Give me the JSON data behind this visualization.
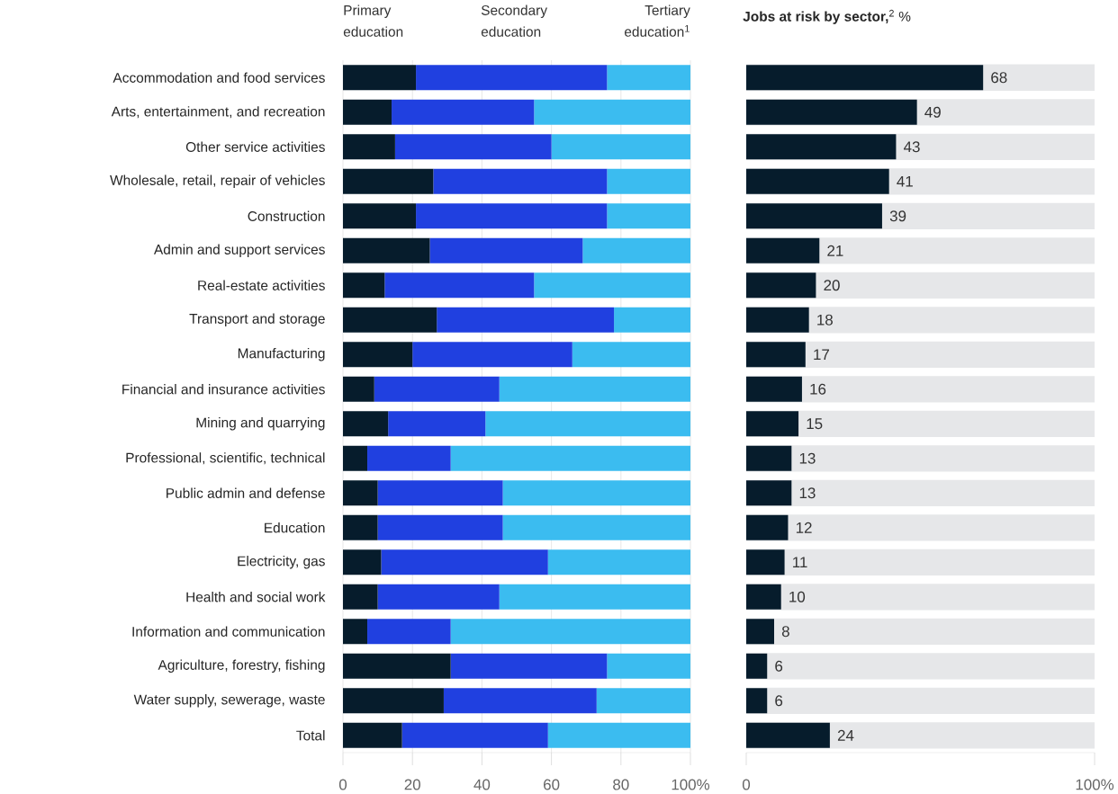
{
  "chart_data": [
    {
      "type": "bar",
      "orientation": "horizontal",
      "stacked": true,
      "legend": "top",
      "grid": "x",
      "categories": [
        "Accommodation and food services",
        "Arts, entertainment, and recreation",
        "Other service activities",
        "Wholesale, retail, repair of vehicles",
        "Construction",
        "Admin and support services",
        "Real-estate activities",
        "Transport and storage",
        "Manufacturing",
        "Financial and insurance activities",
        "Mining and quarrying",
        "Professional, scientific, technical",
        "Public admin and defense",
        "Education",
        "Electricity, gas",
        "Health and social work",
        "Information and communication",
        "Agriculture, forestry, fishing",
        "Water supply, sewerage, waste",
        "Total"
      ],
      "series": [
        {
          "name": "Primary education",
          "color": "#061c2c",
          "values": [
            21,
            14,
            15,
            26,
            21,
            25,
            12,
            27,
            20,
            9,
            13,
            7,
            10,
            10,
            11,
            10,
            7,
            31,
            29,
            17
          ]
        },
        {
          "name": "Secondary education",
          "color": "#2040e0",
          "values": [
            55,
            41,
            45,
            50,
            55,
            44,
            43,
            51,
            46,
            36,
            28,
            24,
            36,
            36,
            48,
            35,
            24,
            45,
            44,
            42
          ]
        },
        {
          "name": "Tertiary education$^{1}$",
          "color": "#3bbcf0",
          "values": [
            24,
            45,
            40,
            24,
            24,
            31,
            45,
            22,
            34,
            55,
            59,
            69,
            54,
            54,
            41,
            55,
            69,
            24,
            27,
            41
          ]
        }
      ],
      "xlim": [
        0,
        100
      ],
      "xticks": [
        0,
        20,
        40,
        60,
        80,
        {
          "value": 100,
          "label": "100%"
        }
      ]
    },
    {
      "type": "bar",
      "orientation": "horizontal",
      "title": "**Jobs at risk by sector,**$^{2}$ %",
      "tick_labels": "x",
      "data_labels": true,
      "color": "#061c2c",
      "categories": [
        null,
        null,
        null,
        null,
        null,
        null,
        null,
        null,
        null,
        null,
        null,
        null,
        null,
        null,
        null,
        null,
        null,
        null,
        null,
        null
      ],
      "values": [
        68,
        49,
        43,
        41,
        39,
        21,
        20,
        18,
        17,
        16,
        15,
        13,
        13,
        12,
        11,
        10,
        8,
        6,
        6,
        24
      ],
      "xlim": [
        0,
        100
      ],
      "xticks": [
        0,
        {
          "value": 100,
          "label": "100%"
        }
      ]
    }
  ]
}
